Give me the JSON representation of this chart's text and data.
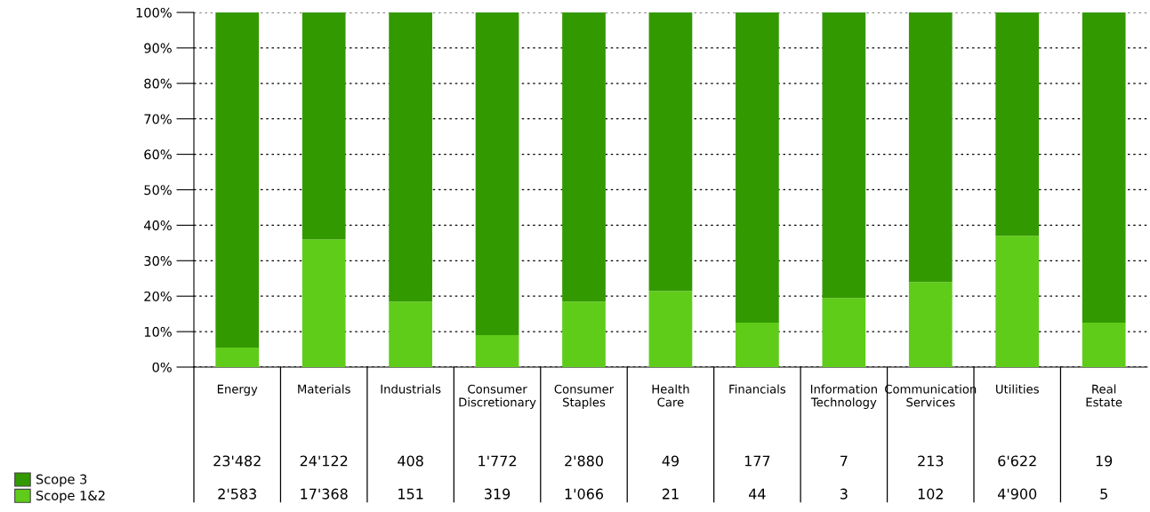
{
  "chart_data": {
    "type": "bar",
    "stacked": true,
    "categories": [
      "Energy",
      "Materials",
      "Industrials",
      "Consumer Discretionary",
      "Consumer Staples",
      "Health Care",
      "Financials",
      "Information Technology",
      "Communication Services",
      "Utilities",
      "Real Estate"
    ],
    "series": [
      {
        "name": "Scope 1&2",
        "color": "#5fcc1a",
        "values": [
          5.5,
          36,
          18.5,
          9,
          18.5,
          21.5,
          12.5,
          19.5,
          24,
          37,
          12.5
        ]
      },
      {
        "name": "Scope 3",
        "color": "#339900",
        "values": [
          94.5,
          64,
          81.5,
          91,
          81.5,
          78.5,
          87.5,
          80.5,
          76,
          63,
          87.5
        ]
      }
    ],
    "annotations": [
      "23'482",
      "24'122",
      "408",
      "1'772",
      "2'880",
      "49",
      "177",
      "7",
      "213",
      "6'622",
      "19",
      "2'583",
      "17'368",
      "151",
      "319",
      "1'066",
      "21",
      "44",
      "3",
      "102",
      "4'900",
      "5"
    ],
    "ylim": [
      0,
      100
    ],
    "yticks": [
      {
        "value": 0,
        "label": "0%"
      },
      {
        "value": 10,
        "label": "10%"
      },
      {
        "value": 20,
        "label": "20%"
      },
      {
        "value": 30,
        "label": "30%"
      },
      {
        "value": 40,
        "label": "40%"
      },
      {
        "value": 50,
        "label": "50%"
      },
      {
        "value": 60,
        "label": "60%"
      },
      {
        "value": 70,
        "label": "70%"
      },
      {
        "value": 80,
        "label": "80%"
      },
      {
        "value": 90,
        "label": "90%"
      },
      {
        "value": 100,
        "label": "100%"
      }
    ],
    "grid": "y",
    "legend": "bottom left"
  }
}
